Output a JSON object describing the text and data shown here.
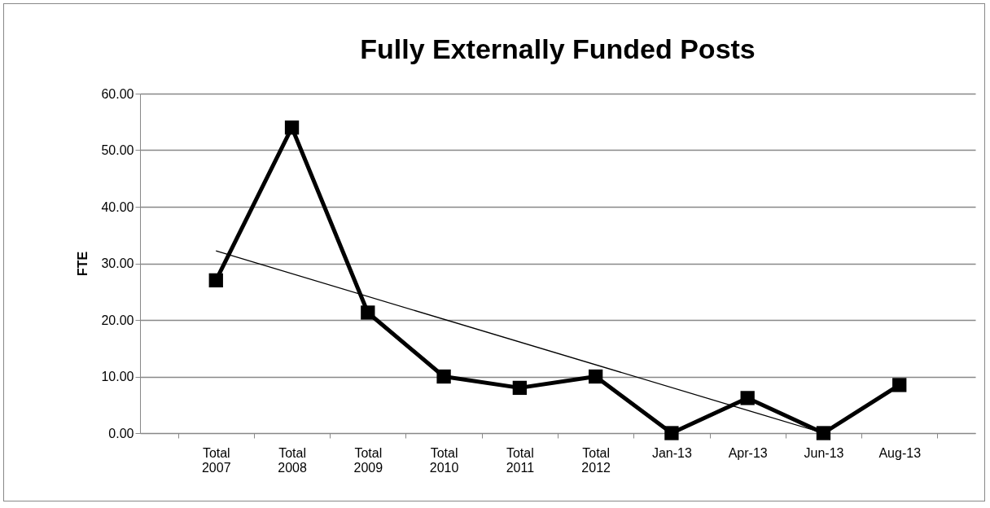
{
  "chart_data": {
    "type": "line",
    "title": "Fully Externally Funded Posts",
    "ylabel": "FTE",
    "categories": [
      "Total 2007",
      "Total 2008",
      "Total 2009",
      "Total 2010",
      "Total 2011",
      "Total 2012",
      "Jan-13",
      "Apr-13",
      "Jun-13",
      "Aug-13"
    ],
    "series": [
      {
        "color": "#000000",
        "marker": "square",
        "values": [
          27.0,
          54.0,
          21.3,
          10.0,
          8.0,
          10.0,
          0.0,
          6.2,
          0.0,
          8.5
        ]
      },
      {
        "type": "line",
        "color": "#000000",
        "x": [
          "Total 2007",
          "Jun-13"
        ],
        "values": [
          32.2,
          0.0
        ]
      }
    ],
    "ylim": [
      0,
      60
    ],
    "yticks": [
      {
        "value": 0,
        "label": "0.00"
      },
      {
        "value": 10,
        "label": "10.00"
      },
      {
        "value": 20,
        "label": "20.00"
      },
      {
        "value": 30,
        "label": "30.00"
      },
      {
        "value": 40,
        "label": "40.00"
      },
      {
        "value": 50,
        "label": "50.00"
      },
      {
        "value": 60,
        "label": "60.00"
      }
    ],
    "grid": "y",
    "line_style": "solid"
  }
}
